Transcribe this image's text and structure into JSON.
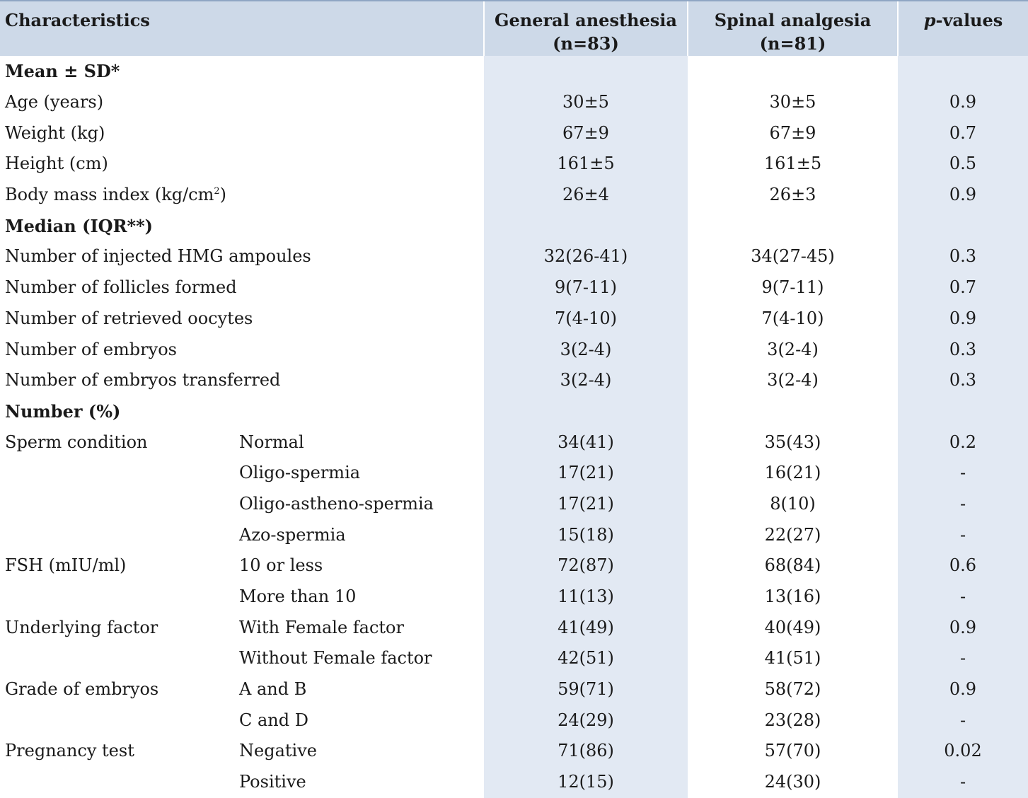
{
  "header": {
    "characteristics": "Characteristics",
    "general_line1": "General anesthesia",
    "general_line2": "(n=83)",
    "spinal_line1": "Spinal analgesia",
    "spinal_line2": "(n=81)",
    "pvalues_italic": "p",
    "pvalues_rest": "-values"
  },
  "sections": {
    "mean": "Mean ± SD*",
    "median": "Median (IQR**)",
    "number": "Number (%)"
  },
  "mean_rows": [
    {
      "label": "Age (years)",
      "ga": "30±5",
      "sa": "30±5",
      "p": "0.9"
    },
    {
      "label": "Weight (kg)",
      "ga": "67±9",
      "sa": "67±9",
      "p": "0.7"
    },
    {
      "label": "Height (cm)",
      "ga": "161±5",
      "sa": "161±5",
      "p": "0.5"
    },
    {
      "label": "Body mass index (kg/cm",
      "label_sup": "2",
      "label_end": ")",
      "ga": "26±4",
      "sa": "26±3",
      "p": "0.9"
    }
  ],
  "median_rows": [
    {
      "label": "Number of injected HMG ampoules",
      "ga": "32(26-41)",
      "sa": "34(27-45)",
      "p": "0.3"
    },
    {
      "label": "Number of follicles formed",
      "ga": "9(7-11)",
      "sa": "9(7-11)",
      "p": "0.7"
    },
    {
      "label": "Number of retrieved oocytes",
      "ga": "7(4-10)",
      "sa": "7(4-10)",
      "p": "0.9"
    },
    {
      "label": "Number of embryos",
      "ga": "3(2-4)",
      "sa": "3(2-4)",
      "p": "0.3"
    },
    {
      "label": "Number of embryos transferred",
      "ga": "3(2-4)",
      "sa": "3(2-4)",
      "p": "0.3"
    }
  ],
  "number_rows": [
    {
      "label": "Sperm condition",
      "sub": "Normal",
      "ga": "34(41)",
      "sa": "35(43)",
      "p": "0.2"
    },
    {
      "label": "",
      "sub": "Oligo-spermia",
      "ga": "17(21)",
      "sa": "16(21)",
      "p": "-"
    },
    {
      "label": "",
      "sub": "Oligo-astheno-spermia",
      "ga": "17(21)",
      "sa": "8(10)",
      "p": "-"
    },
    {
      "label": "",
      "sub": "Azo-spermia",
      "ga": "15(18)",
      "sa": "22(27)",
      "p": "-"
    },
    {
      "label": "FSH (mIU/ml)",
      "sub": "10 or less",
      "ga": "72(87)",
      "sa": "68(84)",
      "p": "0.6"
    },
    {
      "label": "",
      "sub": "More than 10",
      "ga": "11(13)",
      "sa": "13(16)",
      "p": "-"
    },
    {
      "label": "Underlying factor",
      "sub": "With Female factor",
      "ga": "41(49)",
      "sa": "40(49)",
      "p": "0.9"
    },
    {
      "label": "",
      "sub": "Without Female factor",
      "ga": "42(51)",
      "sa": "41(51)",
      "p": "-"
    },
    {
      "label": "Grade of embryos",
      "sub": "A and B",
      "ga": "59(71)",
      "sa": "58(72)",
      "p": "0.9"
    },
    {
      "label": "",
      "sub": "C and D",
      "ga": "24(29)",
      "sa": "23(28)",
      "p": "-"
    },
    {
      "label": "Pregnancy test",
      "sub": "Negative",
      "ga": "71(86)",
      "sa": "57(70)",
      "p": "0.02"
    },
    {
      "label": "",
      "sub": "Positive",
      "ga": "12(15)",
      "sa": "24(30)",
      "p": "-"
    }
  ]
}
